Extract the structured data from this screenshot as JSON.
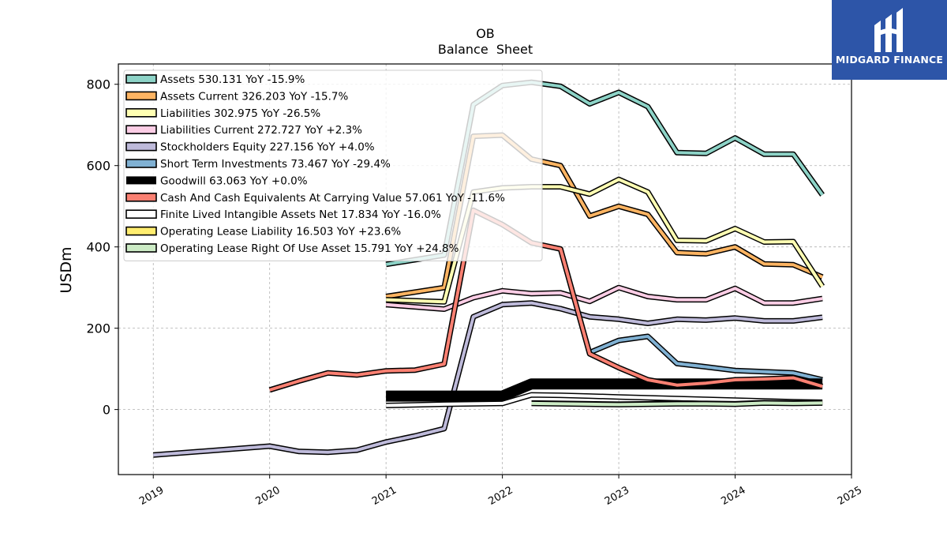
{
  "brand": {
    "name": "MIDGARD FINANCE",
    "bg_color": "#2d55a8"
  },
  "chart_data": {
    "type": "line",
    "title": "OB",
    "subtitle": "Balance  Sheet",
    "ylabel": "USDm",
    "xlabel": "",
    "xlim": [
      2018.7,
      2025.0
    ],
    "ylim": [
      -160,
      850
    ],
    "yticks": [
      0,
      200,
      400,
      600,
      800
    ],
    "xticks": [
      "2019",
      "2020",
      "2021",
      "2022",
      "2023",
      "2024",
      "2025"
    ],
    "grid": true,
    "legend_position": "top-left",
    "series": [
      {
        "name": "Assets",
        "legend": "Assets  530.131 YoY -15.9%",
        "color": "#8dd3c7",
        "width": 4,
        "x": [
          2021.0,
          2021.5,
          2021.75,
          2022.0,
          2022.25,
          2022.5,
          2022.75,
          2023.0,
          2023.25,
          2023.5,
          2023.75,
          2024.0,
          2024.25,
          2024.5,
          2024.75
        ],
        "y": [
          357,
          380,
          750,
          797,
          805,
          795,
          752,
          780,
          745,
          632,
          630,
          668,
          628,
          628,
          528
        ]
      },
      {
        "name": "Assets Current",
        "legend": "Assets Current  326.203 YoY -15.7%",
        "color": "#fdb462",
        "width": 4,
        "x": [
          2021.0,
          2021.5,
          2021.75,
          2022.0,
          2022.25,
          2022.5,
          2022.75,
          2023.0,
          2023.25,
          2023.5,
          2023.75,
          2024.0,
          2024.25,
          2024.5,
          2024.75
        ],
        "y": [
          278,
          300,
          672,
          675,
          616,
          600,
          476,
          500,
          480,
          386,
          383,
          400,
          358,
          356,
          326
        ]
      },
      {
        "name": "Liabilities",
        "legend": "Liabilities  302.975 YoY -26.5%",
        "color": "#ffffb3",
        "width": 4,
        "x": [
          2021.0,
          2021.5,
          2021.75,
          2022.0,
          2022.25,
          2022.5,
          2022.75,
          2023.0,
          2023.25,
          2023.5,
          2023.75,
          2024.0,
          2024.25,
          2024.5,
          2024.75
        ],
        "y": [
          270,
          265,
          535,
          545,
          548,
          548,
          530,
          566,
          535,
          416,
          415,
          445,
          412,
          413,
          303
        ]
      },
      {
        "name": "Liabilities Current",
        "legend": "Liabilities Current  272.727 YoY +2.3%",
        "color": "#fccde5",
        "width": 4,
        "x": [
          2021.0,
          2021.5,
          2021.75,
          2022.0,
          2022.25,
          2022.5,
          2022.75,
          2023.0,
          2023.25,
          2023.5,
          2023.75,
          2024.0,
          2024.25,
          2024.5,
          2024.75
        ],
        "y": [
          258,
          247,
          275,
          292,
          285,
          287,
          266,
          300,
          278,
          270,
          270,
          298,
          262,
          262,
          273
        ]
      },
      {
        "name": "Stockholders Equity",
        "legend": "Stockholders Equity  227.156 YoY +4.0%",
        "color": "#bebada",
        "width": 4,
        "x": [
          2019.0,
          2020.0,
          2020.25,
          2020.5,
          2020.75,
          2021.0,
          2021.25,
          2021.5,
          2021.75,
          2022.0,
          2022.25,
          2022.5,
          2022.75,
          2023.0,
          2023.25,
          2023.5,
          2023.75,
          2024.0,
          2024.25,
          2024.5,
          2024.75
        ],
        "y": [
          -112,
          -90,
          -103,
          -105,
          -100,
          -80,
          -65,
          -47,
          228,
          258,
          262,
          248,
          228,
          222,
          212,
          222,
          220,
          225,
          218,
          218,
          227
        ]
      },
      {
        "name": "Short Term Investments",
        "legend": "Short Term Investments  73.467 YoY -29.4%",
        "color": "#80b1d3",
        "width": 4,
        "x": [
          2022.75,
          2023.0,
          2023.25,
          2023.5,
          2023.75,
          2024.0,
          2024.25,
          2024.5,
          2024.75
        ],
        "y": [
          140,
          170,
          180,
          113,
          105,
          96,
          93,
          90,
          73
        ]
      },
      {
        "name": "Goodwill",
        "legend": "Goodwill  63.063 YoY +0.0%",
        "color": "#000000",
        "width": 11,
        "x": [
          2021.0,
          2021.5,
          2022.0,
          2022.25,
          2022.5,
          2022.75,
          2023.0,
          2023.25,
          2023.5,
          2023.75,
          2024.0,
          2024.25,
          2024.5,
          2024.75
        ],
        "y": [
          33,
          33,
          33,
          63,
          63,
          63,
          63,
          63,
          63,
          63,
          63,
          63,
          63,
          63
        ]
      },
      {
        "name": "Cash And Cash Equivalents At Carrying Value",
        "legend": "Cash And Cash Equivalents At Carrying Value  57.061 YoY -11.6%",
        "color": "#fb8072",
        "width": 4,
        "x": [
          2020.0,
          2020.25,
          2020.5,
          2020.75,
          2021.0,
          2021.25,
          2021.5,
          2021.75,
          2022.0,
          2022.25,
          2022.5,
          2022.75,
          2023.0,
          2023.25,
          2023.5,
          2023.75,
          2024.0,
          2024.25,
          2024.5,
          2024.75
        ],
        "y": [
          48,
          70,
          90,
          85,
          95,
          97,
          112,
          490,
          455,
          410,
          395,
          137,
          103,
          73,
          60,
          65,
          73,
          75,
          78,
          57
        ]
      },
      {
        "name": "Finite Lived Intangible Assets Net",
        "legend": "Finite Lived Intangible Assets Net  17.834 YoY -16.0%",
        "color": "#ffffff",
        "width": 4,
        "x": [
          2021.0,
          2021.5,
          2022.0,
          2022.25,
          2022.5,
          2022.75,
          2023.0,
          2023.25,
          2023.5,
          2023.75,
          2024.0,
          2024.25,
          2024.5,
          2024.75
        ],
        "y": [
          10,
          13,
          15,
          36,
          35,
          33,
          31,
          29,
          27,
          25,
          23,
          21,
          19,
          18
        ]
      },
      {
        "name": "Operating Lease Liability",
        "legend": "Operating Lease Liability  16.503 YoY +23.6%",
        "color": "#ffed6f",
        "width": 4,
        "x": [
          2022.25,
          2022.5,
          2022.75,
          2023.0,
          2023.25,
          2023.5,
          2023.75,
          2024.0,
          2024.25,
          2024.5,
          2024.75
        ],
        "y": [
          16,
          15,
          14,
          13,
          14,
          16,
          15,
          14,
          17,
          16,
          17
        ]
      },
      {
        "name": "Operating Lease Right Of Use Asset",
        "legend": "Operating Lease Right Of Use Asset  15.791 YoY +24.8%",
        "color": "#ccebc5",
        "width": 4,
        "x": [
          2022.25,
          2022.5,
          2022.75,
          2023.0,
          2023.25,
          2023.5,
          2023.75,
          2024.0,
          2024.25,
          2024.5,
          2024.75
        ],
        "y": [
          15,
          14,
          13,
          12,
          13,
          14,
          14,
          13,
          16,
          15,
          16
        ]
      }
    ]
  }
}
